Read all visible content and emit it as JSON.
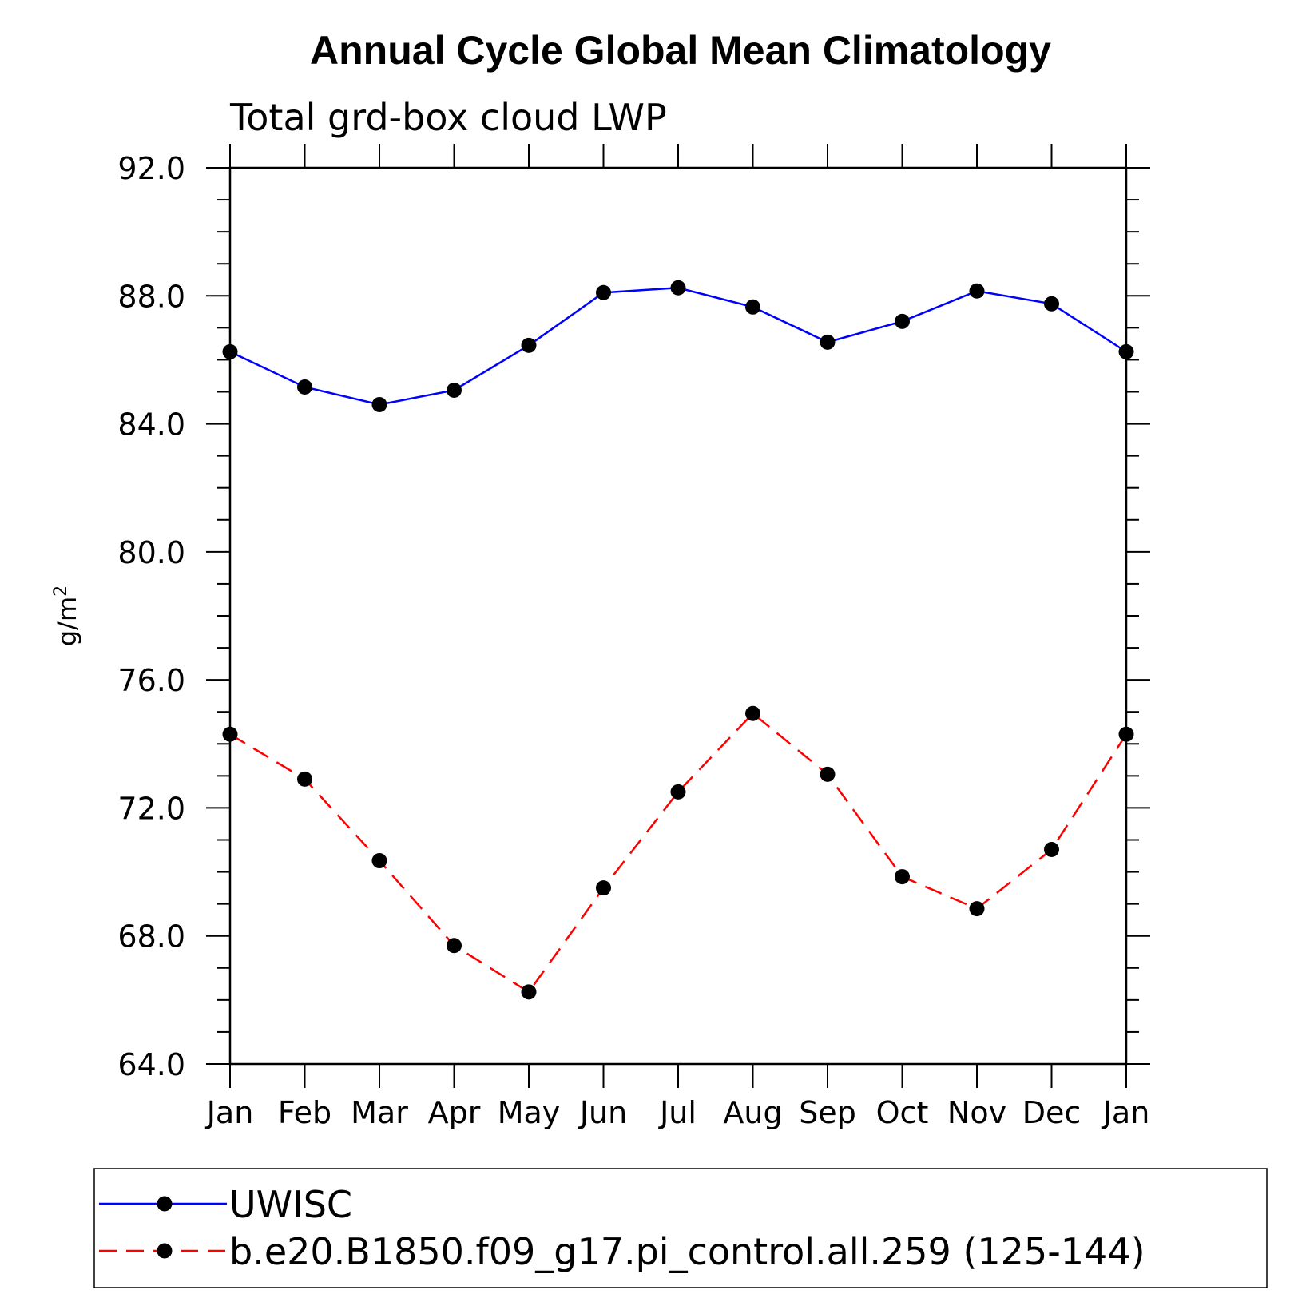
{
  "chart_data": {
    "type": "line",
    "title": "Annual Cycle Global Mean Climatology",
    "subtitle": "Total grd-box cloud LWP",
    "ylabel": "g/m",
    "ylabel_superscript": "2",
    "ylim": [
      64,
      92
    ],
    "yticks": [
      "64.0",
      "68.0",
      "72.0",
      "76.0",
      "80.0",
      "84.0",
      "88.0",
      "92.0"
    ],
    "categories": [
      "Jan",
      "Feb",
      "Mar",
      "Apr",
      "May",
      "Jun",
      "Jul",
      "Aug",
      "Sep",
      "Oct",
      "Nov",
      "Dec",
      "Jan"
    ],
    "series": [
      {
        "name": "UWISC",
        "color": "#0000ff",
        "style": "solid",
        "values": [
          86.25,
          85.15,
          84.6,
          85.05,
          86.45,
          88.1,
          88.25,
          87.65,
          86.55,
          87.2,
          88.15,
          87.75,
          86.25
        ]
      },
      {
        "name": "b.e20.B1850.f09_g17.pi_control.all.259 (125-144)",
        "color": "#ff0000",
        "style": "dashed",
        "values": [
          74.3,
          72.9,
          70.35,
          67.7,
          66.25,
          69.5,
          72.5,
          74.95,
          73.05,
          69.85,
          68.85,
          70.7,
          74.3
        ]
      }
    ],
    "grid": false,
    "legend_position": "bottom"
  }
}
